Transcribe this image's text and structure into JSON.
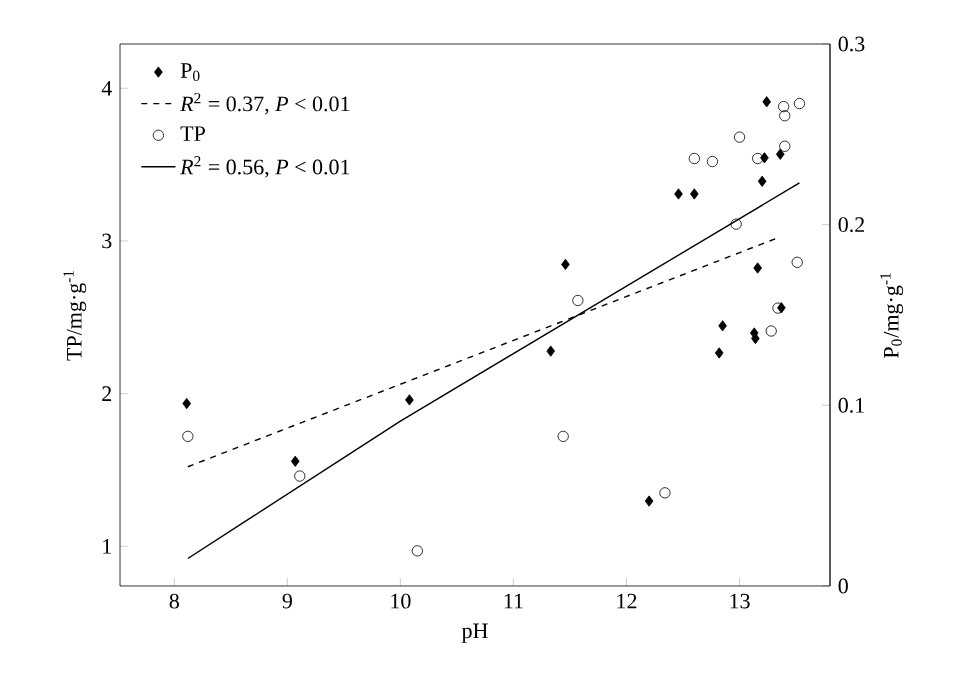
{
  "chart_data": {
    "type": "scatter",
    "xlabel": "pH",
    "ylabel": "TP/mg·g$^{-1}$",
    "y2label": "P$_{0}$/mg·g$^{-1}$",
    "xlim": [
      7.52,
      13.8
    ],
    "xticks": [
      8,
      9,
      10,
      11,
      12,
      13
    ],
    "ylim": [
      0.74,
      4.29
    ],
    "yticks": [
      1,
      2,
      3,
      4
    ],
    "y2lim": [
      0,
      0.3
    ],
    "y2ticks": [
      0,
      0.1,
      0.2,
      0.3
    ],
    "legend": "top left",
    "grid": false,
    "series": [
      {
        "name": "P$_{0}$",
        "axis": "y2",
        "marker": "diamond",
        "color": "#000000",
        "x": [
          8.11,
          9.07,
          10.08,
          11.33,
          11.46,
          12.2,
          12.46,
          12.6,
          12.82,
          12.85,
          13.13,
          13.14,
          13.16,
          13.2,
          13.22,
          13.24,
          13.36,
          13.37
        ],
        "values": [
          0.101,
          0.069,
          0.103,
          0.13,
          0.178,
          0.047,
          0.217,
          0.217,
          0.129,
          0.144,
          0.14,
          0.137,
          0.176,
          0.224,
          0.237,
          0.268,
          0.239,
          0.154
        ]
      },
      {
        "name": "*R*$^{2}$ = 0.37, *P* < 0.01",
        "type": "line",
        "axis": "y2",
        "line_style": "dashed",
        "marker": "none",
        "color": "#000000",
        "x": [
          8.12,
          13.35
        ],
        "values": [
          0.066,
          0.193
        ]
      },
      {
        "name": "TP",
        "marker": "circle",
        "color": "#000000",
        "x": [
          8.12,
          9.11,
          10.15,
          11.44,
          11.57,
          12.34,
          12.6,
          12.76,
          12.97,
          13.0,
          13.16,
          13.28,
          13.34,
          13.4,
          13.4,
          13.39,
          13.53,
          13.51
        ],
        "values": [
          1.72,
          1.46,
          0.97,
          1.72,
          2.61,
          1.35,
          3.54,
          3.52,
          3.11,
          3.68,
          3.54,
          2.41,
          2.56,
          3.62,
          3.82,
          3.88,
          3.9,
          2.86
        ]
      },
      {
        "name": "*R*$^{2}$ = 0.56, *P* < 0.01",
        "type": "line",
        "line_style": "solid",
        "marker": "none",
        "color": "#000000",
        "x": [
          8.12,
          10.0,
          13.53
        ],
        "values": [
          0.92,
          1.82,
          3.38
        ]
      }
    ]
  }
}
